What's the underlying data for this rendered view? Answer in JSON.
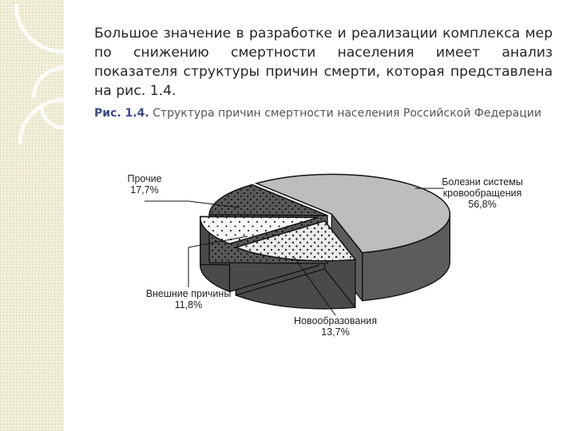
{
  "slide": {
    "paragraph": "Большое значение в разработке и реализации комплекса мер по снижению смертности населения имеет анализ показателя структуры причин смерти, которая представлена на рис. 1.4.",
    "figure_label": "Рис. 1.4.",
    "figure_caption": " Структура причин смертности населения Российской Федерации"
  },
  "colors": {
    "strip_background": "#f4f2dd",
    "figure_label": "#3b4a88",
    "circulatory": "#bdbdbd",
    "neoplasms": "#5a5a5a",
    "external": "#f2f2f2",
    "other": "#e6e6e6"
  },
  "chart_data": {
    "type": "pie",
    "style": "3d-exploded",
    "title": "",
    "slices": [
      {
        "label": "Болезни системы кровообращения",
        "label_lines": [
          "Болезни системы",
          "кровообращения"
        ],
        "value": 56.8,
        "value_text": "56,8%",
        "fill": "dotted-none"
      },
      {
        "label": "Новообразования",
        "label_lines": [
          "Новообразования"
        ],
        "value": 13.7,
        "value_text": "13,7%",
        "fill": "dark-dotted"
      },
      {
        "label": "Внешние причины",
        "label_lines": [
          "Внешние причины"
        ],
        "value": 11.8,
        "value_text": "11,8%",
        "fill": "light-dotted"
      },
      {
        "label": "Прочие",
        "label_lines": [
          "Прочие"
        ],
        "value": 17.7,
        "value_text": "17,7%",
        "fill": "dense-dotted"
      }
    ]
  }
}
